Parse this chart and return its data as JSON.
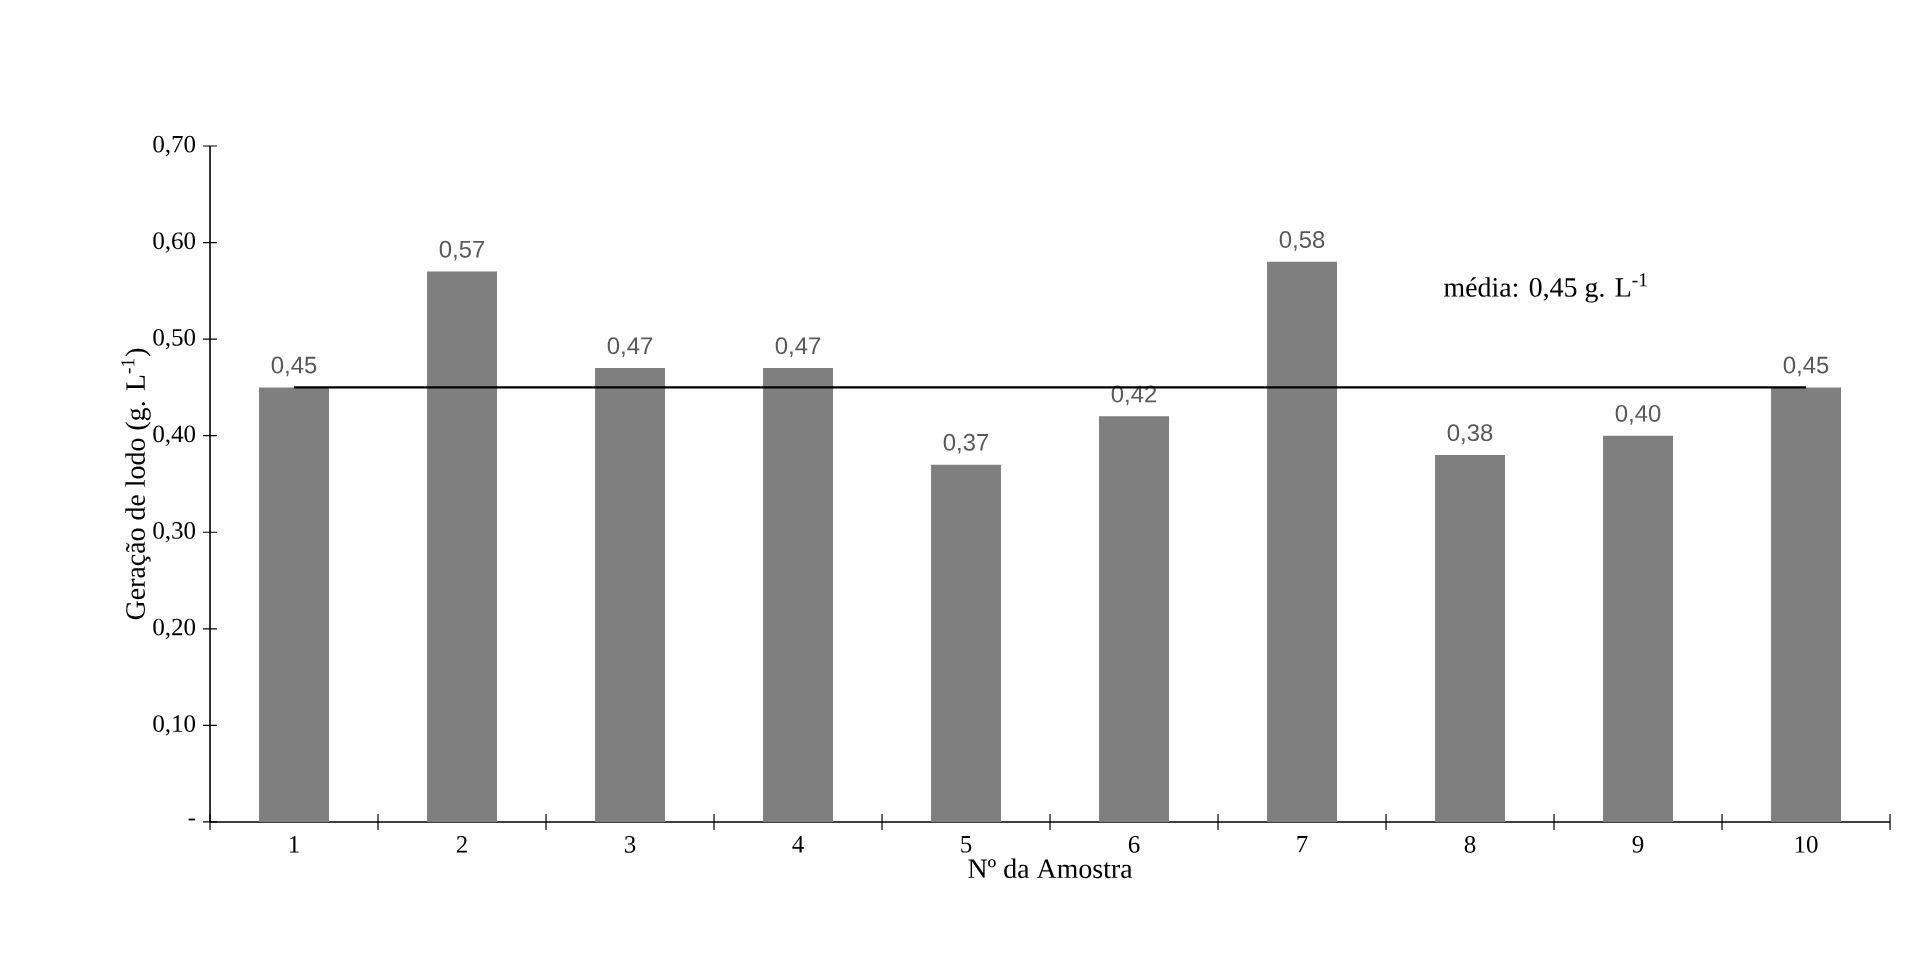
{
  "chart_data": {
    "type": "bar",
    "xlabel": "Nº da Amostra",
    "ylabel": "Geração de lodo (g. L$^{-1}$)",
    "categories": [
      "1",
      "2",
      "3",
      "4",
      "5",
      "6",
      "7",
      "8",
      "9",
      "10"
    ],
    "values": [
      0.45,
      0.57,
      0.47,
      0.47,
      0.37,
      0.42,
      0.58,
      0.38,
      0.4,
      0.45
    ],
    "value_labels": [
      "0,45",
      "0,57",
      "0,47",
      "0,47",
      "0,37",
      "0,42",
      "0,58",
      "0,38",
      "0,40",
      "0,45"
    ],
    "color": "#7f7f7f",
    "ylim": [
      0,
      0.7
    ],
    "yticks": [
      {
        "value": 0,
        "label": "-"
      },
      {
        "value": 0.1,
        "label": "0,10"
      },
      {
        "value": 0.2,
        "label": "0,20"
      },
      {
        "value": 0.3,
        "label": "0,30"
      },
      {
        "value": 0.4,
        "label": "0,40"
      },
      {
        "value": 0.5,
        "label": "0,50"
      },
      {
        "value": 0.6,
        "label": "0,60"
      },
      {
        "value": 0.7,
        "label": "0,70"
      }
    ],
    "ref_lines": [
      {
        "axis": "y",
        "value": 0.45,
        "label": "média: 0,45 g. L$^{-1}$",
        "color": "#000000"
      }
    ]
  }
}
